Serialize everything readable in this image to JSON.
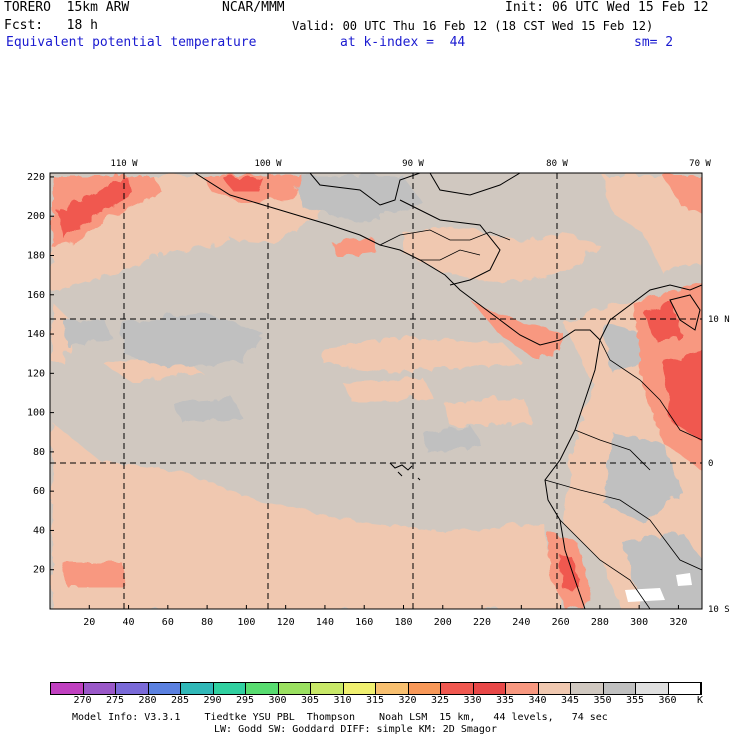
{
  "header": {
    "model": "TORERO  15km ARW",
    "center": "NCAR/MMM",
    "init": "Init: 06 UTC Wed 15 Feb 12",
    "fcst": "Fcst:   18 h",
    "valid": "Valid: 00 UTC Thu 16 Feb 12 (18 CST Wed 15 Feb 12)",
    "field": "Equivalent potential temperature",
    "level": "at k-index =  44",
    "smooth": "sm= 2"
  },
  "map": {
    "lon_labels": [
      "110 W",
      "100 W",
      "90 W",
      "80 W",
      "70 W"
    ],
    "lat_labels": [
      "10 N",
      "0",
      "10 S"
    ],
    "y_ticks": [
      "220",
      "200",
      "180",
      "160",
      "140",
      "120",
      "100",
      "80",
      "60",
      "40",
      "20"
    ],
    "x_ticks": [
      "20",
      "40",
      "60",
      "80",
      "100",
      "120",
      "140",
      "160",
      "180",
      "200",
      "220",
      "240",
      "260",
      "280",
      "300",
      "320"
    ]
  },
  "colorbar": {
    "levels": [
      "270",
      "275",
      "280",
      "285",
      "290",
      "295",
      "300",
      "305",
      "310",
      "315",
      "320",
      "325",
      "330",
      "335",
      "340",
      "345",
      "350",
      "355",
      "360"
    ],
    "unit": "K",
    "colors": [
      "#c040c0",
      "#9a58c8",
      "#7a6ad8",
      "#5a80e0",
      "#30b8b8",
      "#30d0a0",
      "#58dc70",
      "#9ae060",
      "#c8e868",
      "#f0f070",
      "#f8c070",
      "#f89858",
      "#f05850",
      "#e84848",
      "#f89880",
      "#f0c8b0",
      "#d0c8c0",
      "#c0c0c0",
      "#e0e0e0",
      "#ffffff"
    ]
  },
  "footer": {
    "line1": "Model Info: V3.3.1    Tiedtke YSU PBL  Thompson    Noah LSM  15 km,   44 levels,   74 sec",
    "line2": "LW: Godd SW: Goddard DIFF: simple KM: 2D Smagor"
  }
}
